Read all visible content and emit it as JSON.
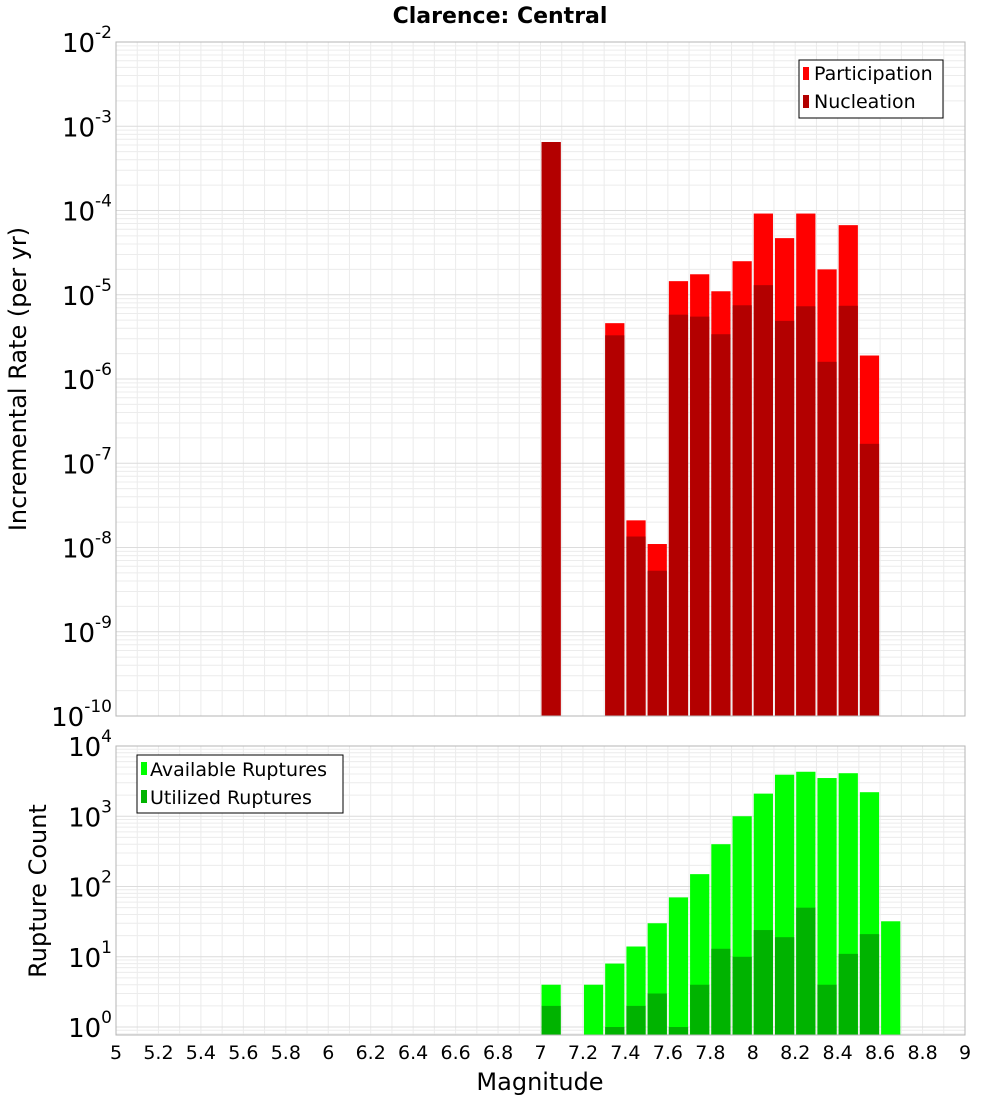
{
  "chart_data": [
    {
      "type": "bar",
      "title": "Clarence: Central",
      "xlabel": "",
      "ylabel": "Incremental Rate (per yr)",
      "yscale": "log",
      "xlim": [
        5,
        9
      ],
      "ylim": [
        1e-10,
        0.01
      ],
      "legend_position": "top-right",
      "grid": true,
      "bar_width": 0.1,
      "y_tick_exponents": [
        -10,
        -9,
        -8,
        -7,
        -6,
        -5,
        -4,
        -3,
        -2
      ],
      "series": [
        {
          "name": "Participation",
          "color": "#ff0000",
          "x": [
            7.05,
            7.35,
            7.45,
            7.55,
            7.65,
            7.75,
            7.85,
            7.95,
            8.05,
            8.15,
            8.25,
            8.35,
            8.45,
            8.55
          ],
          "values": [
            0.00065,
            4.6e-06,
            2.1e-08,
            1.1e-08,
            1.45e-05,
            1.75e-05,
            1.1e-05,
            2.5e-05,
            9.2e-05,
            4.7e-05,
            9.2e-05,
            2e-05,
            6.7e-05,
            1.9e-06
          ]
        },
        {
          "name": "Nucleation",
          "color": "#b30000",
          "x": [
            7.05,
            7.35,
            7.45,
            7.55,
            7.65,
            7.75,
            7.85,
            7.95,
            8.05,
            8.15,
            8.25,
            8.35,
            8.45,
            8.55
          ],
          "values": [
            0.00065,
            3.3e-06,
            1.35e-08,
            5.3e-09,
            5.8e-06,
            5.5e-06,
            3.4e-06,
            7.5e-06,
            1.3e-05,
            4.9e-06,
            7.3e-06,
            1.6e-06,
            7.4e-06,
            1.7e-07
          ]
        }
      ]
    },
    {
      "type": "bar",
      "title": "",
      "xlabel": "Magnitude",
      "ylabel": "Rupture Count",
      "yscale": "log",
      "xlim": [
        5,
        9
      ],
      "ylim": [
        0.77,
        10000
      ],
      "legend_position": "top-left",
      "grid": true,
      "bar_width": 0.1,
      "x_ticks": [
        "5",
        "5.2",
        "5.4",
        "5.6",
        "5.8",
        "6",
        "6.2",
        "6.4",
        "6.6",
        "6.8",
        "7",
        "7.2",
        "7.4",
        "7.6",
        "7.8",
        "8",
        "8.2",
        "8.4",
        "8.6",
        "8.8",
        "9"
      ],
      "y_tick_exponents": [
        0,
        1,
        2,
        3,
        4
      ],
      "series": [
        {
          "name": "Available Ruptures",
          "color": "#00ff00",
          "x": [
            7.05,
            7.25,
            7.35,
            7.45,
            7.55,
            7.65,
            7.75,
            7.85,
            7.95,
            8.05,
            8.15,
            8.25,
            8.35,
            8.45,
            8.55,
            8.65
          ],
          "values": [
            4,
            4,
            8,
            14,
            30,
            70,
            150,
            400,
            1000,
            2100,
            3900,
            4300,
            3500,
            4100,
            2200,
            32
          ]
        },
        {
          "name": "Utilized Ruptures",
          "color": "#00b300",
          "x": [
            7.05,
            7.35,
            7.45,
            7.55,
            7.65,
            7.75,
            7.85,
            7.95,
            8.05,
            8.15,
            8.25,
            8.35,
            8.45,
            8.55
          ],
          "values": [
            2,
            1,
            2,
            3,
            1,
            4,
            13,
            10,
            24,
            19,
            50,
            4,
            11,
            21
          ]
        }
      ]
    }
  ]
}
